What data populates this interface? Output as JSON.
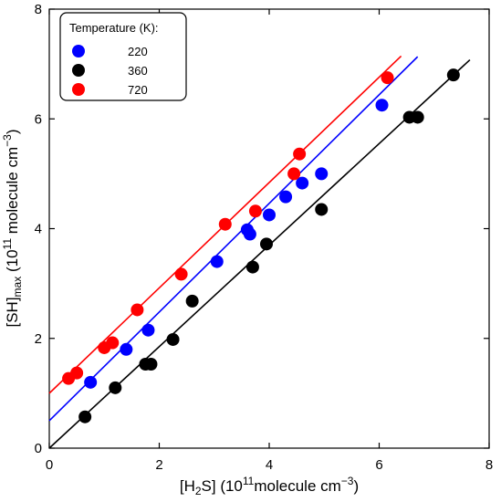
{
  "chart_data": {
    "type": "scatter",
    "xlim": [
      0,
      8
    ],
    "ylim": [
      0,
      8
    ],
    "x_ticks": [
      0,
      2,
      4,
      6,
      8
    ],
    "y_ticks": [
      0,
      2,
      4,
      6,
      8
    ],
    "x_tick_labels": [
      "0",
      "2",
      "4",
      "6",
      "8"
    ],
    "y_tick_labels": [
      "0",
      "2",
      "4",
      "6",
      "8"
    ],
    "xlabel": {
      "base": "[H",
      "sub": "2",
      "mid": "S] (10",
      "sup": "11",
      "end": "molecule cm",
      "sup2": "−3",
      "close": ")"
    },
    "ylabel": {
      "base": "[SH]",
      "sub": "max",
      "mid": " (10",
      "sup": "11",
      "end": " molecule cm",
      "sup2": "−3",
      "close": ")"
    },
    "grid": false,
    "legend": {
      "title": "Temperature (K):",
      "placement": "top-left"
    },
    "series": [
      {
        "name": "220",
        "color": "#0000ff",
        "fit": {
          "intercept": 0.5,
          "slope": 0.99,
          "x_range": [
            0,
            6.7
          ]
        },
        "points": [
          [
            0.75,
            1.2
          ],
          [
            1.4,
            1.8
          ],
          [
            1.8,
            2.15
          ],
          [
            3.05,
            3.4
          ],
          [
            3.6,
            3.98
          ],
          [
            3.65,
            3.9
          ],
          [
            4.0,
            4.25
          ],
          [
            4.3,
            4.58
          ],
          [
            4.6,
            4.83
          ],
          [
            4.95,
            5.0
          ],
          [
            6.05,
            6.25
          ]
        ]
      },
      {
        "name": "360",
        "color": "#000000",
        "fit": {
          "intercept": 0.0,
          "slope": 0.925,
          "x_range": [
            0,
            7.65
          ]
        },
        "points": [
          [
            0.65,
            0.57
          ],
          [
            1.2,
            1.1
          ],
          [
            1.75,
            1.53
          ],
          [
            1.85,
            1.53
          ],
          [
            2.25,
            1.98
          ],
          [
            2.6,
            2.68
          ],
          [
            3.7,
            3.3
          ],
          [
            3.95,
            3.72
          ],
          [
            4.95,
            4.35
          ],
          [
            6.55,
            6.03
          ],
          [
            6.7,
            6.03
          ],
          [
            7.35,
            6.8
          ]
        ]
      },
      {
        "name": "720",
        "color": "#ff0000",
        "fit": {
          "intercept": 1.0,
          "slope": 0.96,
          "x_range": [
            0,
            6.4
          ]
        },
        "points": [
          [
            0.35,
            1.27
          ],
          [
            0.5,
            1.37
          ],
          [
            1.0,
            1.83
          ],
          [
            1.15,
            1.92
          ],
          [
            1.6,
            2.52
          ],
          [
            2.4,
            3.17
          ],
          [
            3.2,
            4.08
          ],
          [
            3.75,
            4.32
          ],
          [
            4.45,
            5.0
          ],
          [
            4.55,
            5.36
          ],
          [
            6.15,
            6.75
          ]
        ]
      }
    ]
  }
}
